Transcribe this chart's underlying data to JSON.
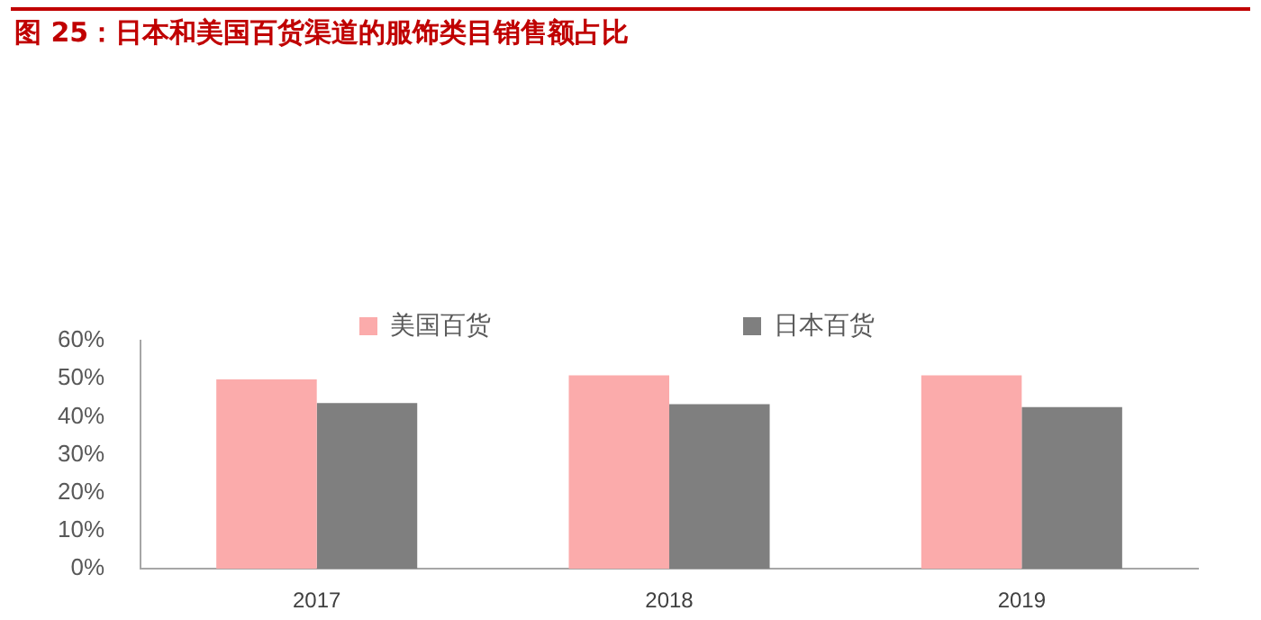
{
  "chart_data": {
    "type": "bar",
    "title": "图 25：日本和美国百货渠道的服饰类目销售额占比",
    "categories": [
      "2017",
      "2018",
      "2019"
    ],
    "series": [
      {
        "name": "美国百货",
        "color": "#fbabab",
        "values": [
          49.8,
          50.9,
          50.9
        ]
      },
      {
        "name": "日本百货",
        "color": "#7f7f7f",
        "values": [
          43.6,
          43.3,
          42.5
        ]
      }
    ],
    "ylim": [
      0,
      60
    ],
    "yticks": [
      {
        "value": 0,
        "label": "0%"
      },
      {
        "value": 10,
        "label": "10%"
      },
      {
        "value": 20,
        "label": "20%"
      },
      {
        "value": 30,
        "label": "30%"
      },
      {
        "value": 40,
        "label": "40%"
      },
      {
        "value": 50,
        "label": "50%"
      },
      {
        "value": 60,
        "label": "60%"
      }
    ],
    "grid": false,
    "legend": "top"
  }
}
